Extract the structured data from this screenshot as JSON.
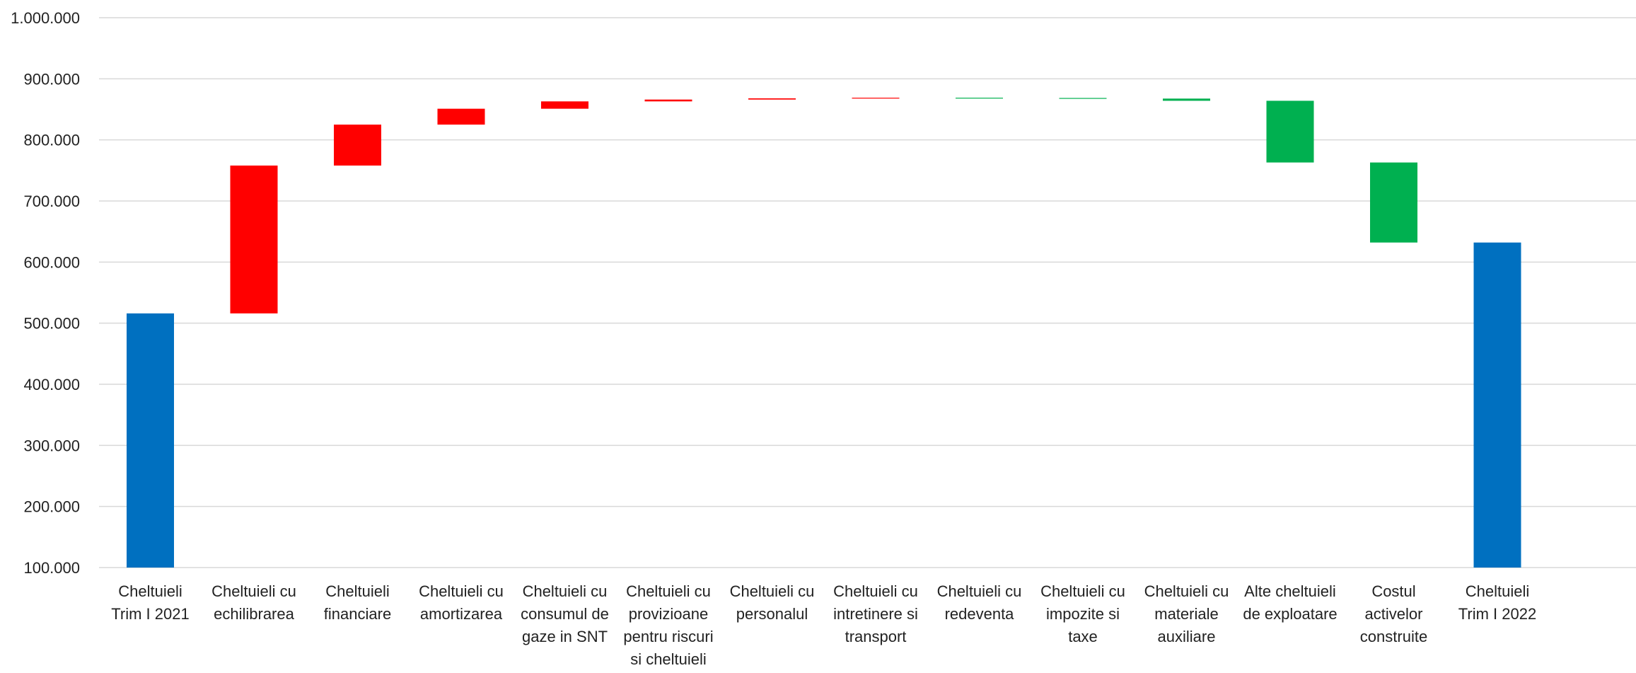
{
  "chart_data": {
    "type": "waterfall",
    "title": "",
    "xlabel": "",
    "ylabel": "",
    "ylim": [
      100000,
      1000000
    ],
    "y_ticks": [
      {
        "value": 100000,
        "label": "100.000"
      },
      {
        "value": 200000,
        "label": "200.000"
      },
      {
        "value": 300000,
        "label": "300.000"
      },
      {
        "value": 400000,
        "label": "400.000"
      },
      {
        "value": 500000,
        "label": "500.000"
      },
      {
        "value": 600000,
        "label": "600.000"
      },
      {
        "value": 700000,
        "label": "700.000"
      },
      {
        "value": 800000,
        "label": "800.000"
      },
      {
        "value": 900000,
        "label": "900.000"
      },
      {
        "value": 1000000,
        "label": "1.000.000"
      }
    ],
    "grid": true,
    "legend": "none",
    "colors": {
      "total": "#0070C0",
      "increase": "#FF0000",
      "decrease": "#00B050",
      "grid": "#D9D9D9"
    },
    "bars": [
      {
        "category": "Cheltuieli Trim I 2021",
        "label_lines": [
          "Cheltuieli",
          "Trim I 2021"
        ],
        "kind": "total",
        "start": 0,
        "end": 516000
      },
      {
        "category": "Cheltuieli cu echilibrarea",
        "label_lines": [
          "Cheltuieli cu",
          "echilibrarea"
        ],
        "kind": "increase",
        "start": 516000,
        "end": 758000
      },
      {
        "category": "Cheltuieli financiare",
        "label_lines": [
          "Cheltuieli",
          "financiare"
        ],
        "kind": "increase",
        "start": 758000,
        "end": 825000
      },
      {
        "category": "Cheltuieli cu amortizarea",
        "label_lines": [
          "Cheltuieli cu",
          "amortizarea"
        ],
        "kind": "increase",
        "start": 825000,
        "end": 851000
      },
      {
        "category": "Cheltuieli cu consumul de gaze in SNT",
        "label_lines": [
          "Cheltuieli cu",
          "consumul de",
          "gaze in SNT"
        ],
        "kind": "increase",
        "start": 851000,
        "end": 863000
      },
      {
        "category": "Cheltuieli cu provizioane pentru riscuri si cheltuieli",
        "label_lines": [
          "Cheltuieli cu",
          "provizioane",
          "pentru riscuri",
          "si cheltuieli"
        ],
        "kind": "increase",
        "start": 863000,
        "end": 866000
      },
      {
        "category": "Cheltuieli cu personalul",
        "label_lines": [
          "Cheltuieli cu",
          "personalul"
        ],
        "kind": "increase",
        "start": 866000,
        "end": 868000
      },
      {
        "category": "Cheltuieli cu intretinere si transport",
        "label_lines": [
          "Cheltuieli cu",
          "intretinere si",
          "transport"
        ],
        "kind": "increase",
        "start": 868000,
        "end": 869000
      },
      {
        "category": "Cheltuieli cu redeventa",
        "label_lines": [
          "Cheltuieli cu",
          "redeventa"
        ],
        "kind": "decrease",
        "start": 869000,
        "end": 868600
      },
      {
        "category": "Cheltuieli cu impozite si taxe",
        "label_lines": [
          "Cheltuieli cu",
          "impozite si",
          "taxe"
        ],
        "kind": "decrease",
        "start": 868600,
        "end": 867600
      },
      {
        "category": "Cheltuieli cu materiale auxiliare",
        "label_lines": [
          "Cheltuieli cu",
          "materiale",
          "auxiliare"
        ],
        "kind": "decrease",
        "start": 867600,
        "end": 864000
      },
      {
        "category": "Alte cheltuieli de exploatare",
        "label_lines": [
          "Alte cheltuieli",
          "de exploatare"
        ],
        "kind": "decrease",
        "start": 864000,
        "end": 763000
      },
      {
        "category": "Costul activelor construite",
        "label_lines": [
          "Costul",
          "activelor",
          "construite"
        ],
        "kind": "decrease",
        "start": 763000,
        "end": 632000
      },
      {
        "category": "Cheltuieli Trim I 2022",
        "label_lines": [
          "Cheltuieli",
          "Trim I 2022"
        ],
        "kind": "total",
        "start": 0,
        "end": 632000
      }
    ]
  }
}
